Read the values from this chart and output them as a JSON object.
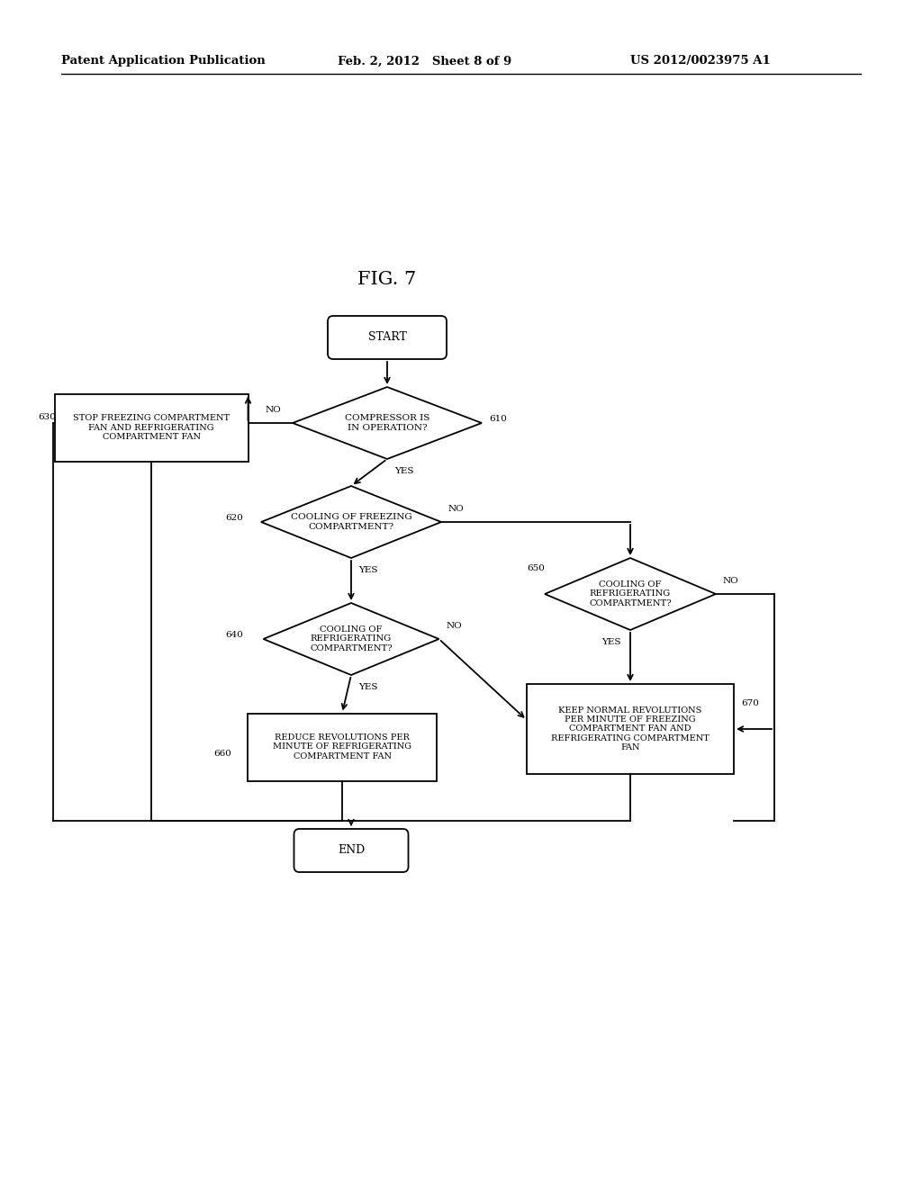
{
  "title": "FIG. 7",
  "header_left": "Patent Application Publication",
  "header_mid": "Feb. 2, 2012   Sheet 8 of 9",
  "header_right": "US 2012/0023975 A1",
  "bg_color": "#ffffff"
}
